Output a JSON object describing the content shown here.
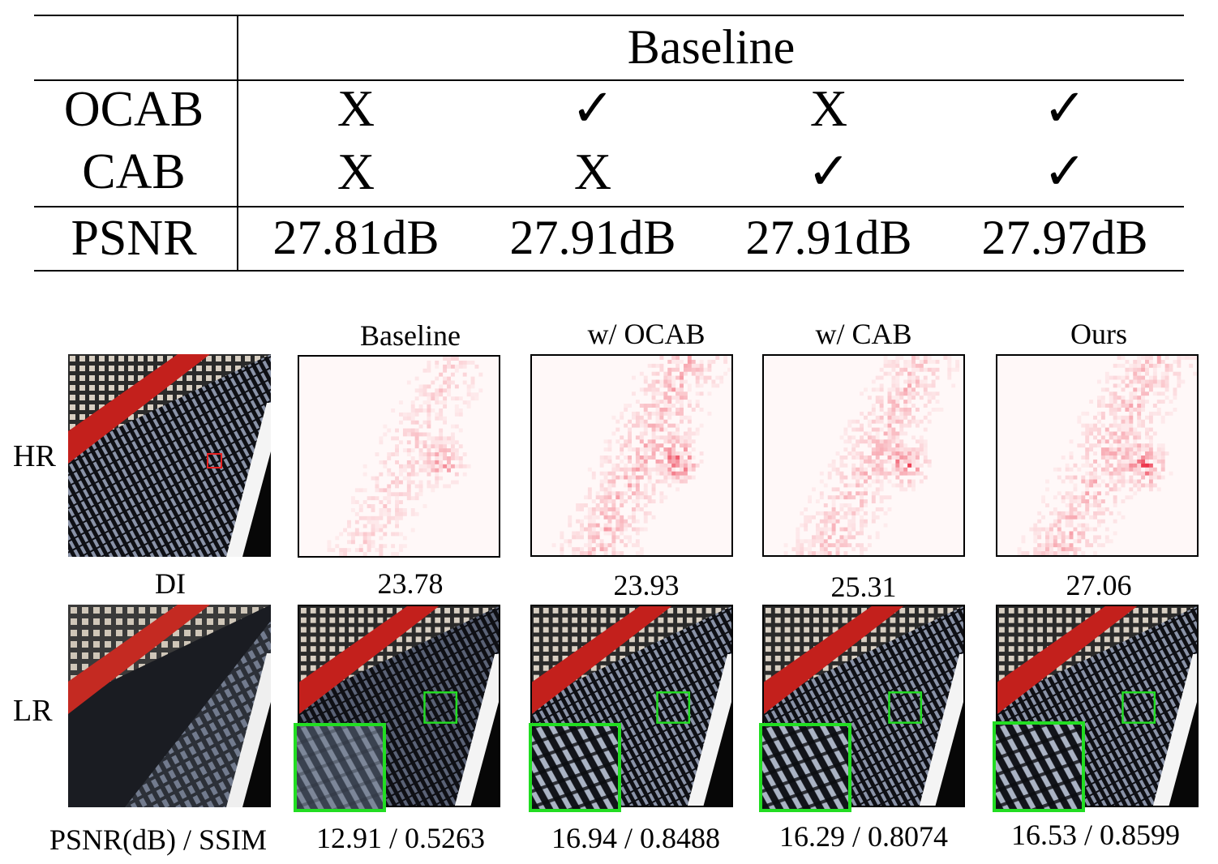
{
  "table": {
    "header": "Baseline",
    "rows": [
      {
        "label": "OCAB",
        "cells": [
          "X",
          "✓",
          "X",
          "✓"
        ]
      },
      {
        "label": "CAB",
        "cells": [
          "X",
          "X",
          "✓",
          "✓"
        ]
      },
      {
        "label": "PSNR",
        "cells": [
          "27.81dB",
          "27.91dB",
          "27.91dB",
          "27.97dB"
        ]
      }
    ]
  },
  "figure": {
    "columns": [
      "Baseline",
      "w/ OCAB",
      "w/ CAB",
      "Ours"
    ],
    "row_labels": {
      "hr": "HR",
      "lr": "LR"
    },
    "di_label": "DI",
    "di_values": [
      "23.78",
      "23.93",
      "25.31",
      "27.06"
    ],
    "metric_label": "PSNR(dB) / SSIM",
    "metrics": [
      "12.91 / 0.5263",
      "16.94 / 0.8488",
      "16.29 / 0.8074",
      "16.53 / 0.8599"
    ],
    "colors": {
      "heat": "#e8001c",
      "box_hr": "#e82020",
      "box_zoom": "#22dd22"
    }
  }
}
